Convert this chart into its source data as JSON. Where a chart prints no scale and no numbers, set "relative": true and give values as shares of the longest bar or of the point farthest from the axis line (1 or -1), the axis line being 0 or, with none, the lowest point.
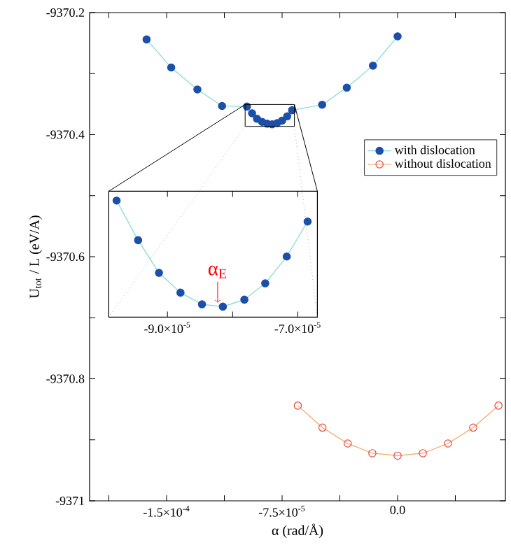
{
  "chart_data": [
    {
      "type": "line",
      "xlabel": "α  (rad/Å)",
      "ylabel": "U$_{tot}$ / L  (eV/A)",
      "xlim": [
        -0.0002,
        7e-05
      ],
      "ylim": [
        -9371,
        -9370.2
      ],
      "xticks": [
        {
          "value": -0.0001875,
          "label": null
        },
        {
          "value": -0.00015,
          "label": "-1.5×10$^{-4}$"
        },
        {
          "value": -0.0001125,
          "label": null
        },
        {
          "value": -7.5e-05,
          "label": "-7.5×10$^{-5}$"
        },
        {
          "value": -3.75e-05,
          "label": null
        },
        {
          "value": 0,
          "label": "0.0"
        },
        {
          "value": 3.75e-05,
          "label": null
        }
      ],
      "yticks": [
        -9371,
        {
          "value": -9370.9,
          "label": null
        },
        -9370.8,
        {
          "value": -9370.7,
          "label": null
        },
        -9370.6,
        {
          "value": -9370.5,
          "label": null
        },
        -9370.4,
        {
          "value": -9370.3,
          "label": null
        },
        -9370.2
      ],
      "legend": "right",
      "marker": "circle",
      "series": [
        {
          "name": "with dislocation",
          "color": "#1c4fa8",
          "x": [
            -0.000163,
            -0.000147,
            -0.00013,
            -0.000114,
            -9.78e-05,
            -9.45e-05,
            -9.13e-05,
            -8.8e-05,
            -8.47e-05,
            -8.15e-05,
            -7.82e-05,
            -7.5e-05,
            -7.17e-05,
            -6.85e-05,
            -4.9e-05,
            -3.3e-05,
            -1.6e-05,
            0
          ],
          "values": [
            -9370.244,
            -9370.29,
            -9370.326,
            -9370.353,
            -9370.354,
            -9370.365,
            -9370.374,
            -9370.379,
            -9370.382,
            -9370.383,
            -9370.381,
            -9370.377,
            -9370.37,
            -9370.36,
            -9370.351,
            -9370.323,
            -9370.287,
            -9370.239
          ]
        },
        {
          "name": "without dislocation",
          "color": "#e8463c",
          "x": [
            -6.48e-05,
            -4.88e-05,
            -3.24e-05,
            -1.64e-05,
            0,
            1.64e-05,
            3.27e-05,
            4.91e-05,
            6.55e-05
          ],
          "values": [
            -9370.844,
            -9370.88,
            -9370.906,
            -9370.922,
            -9370.926,
            -9370.922,
            -9370.906,
            -9370.88,
            -9370.844
          ]
        }
      ]
    },
    {
      "type": "line",
      "relative": true,
      "xlim": [
        -9.9e-05,
        -6.7e-05
      ],
      "tick_labels": "x",
      "marker": "circle",
      "xticks": [
        {
          "value": -9e-05,
          "label": "-9.0×10$^{-5}$"
        },
        {
          "value": -8e-05,
          "label": null
        },
        {
          "value": -7e-05,
          "label": "-7.0×10$^{-5}$"
        }
      ],
      "annotations": [
        {
          "text": "α$_{E}$",
          "x": -8.23e-05,
          "y": 0.1
        }
      ],
      "series": [
        {
          "color": "#1c4fa8",
          "x": [
            -9.78e-05,
            -9.45e-05,
            -9.13e-05,
            -8.8e-05,
            -8.47e-05,
            -8.15e-05,
            -7.82e-05,
            -7.5e-05,
            -7.17e-05,
            -6.85e-05
          ],
          "values": [
            1,
            0.66,
            0.38,
            0.21,
            0.11,
            0.09,
            0.15,
            0.29,
            0.52,
            0.82
          ]
        }
      ]
    }
  ]
}
